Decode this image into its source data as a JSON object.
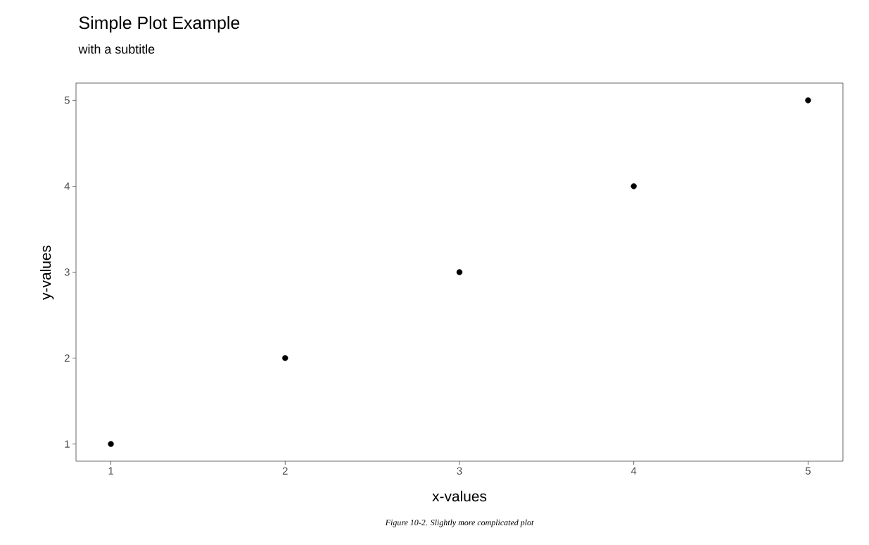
{
  "chart_data": {
    "type": "scatter",
    "title": "Simple Plot Example",
    "subtitle": "with a subtitle",
    "xlabel": "x-values",
    "ylabel": "y-values",
    "annotations": [
      "Figure 10-2. Slightly more complicated plot"
    ],
    "x": [
      1,
      2,
      3,
      4,
      5
    ],
    "values": [
      1,
      2,
      3,
      4,
      5
    ],
    "color": "#000000",
    "marker": "circle",
    "xlim": [
      0.8,
      5.2
    ],
    "ylim": [
      0.8,
      5.2
    ],
    "xticks": [
      1,
      2,
      3,
      4,
      5
    ],
    "yticks": [
      1,
      2,
      3,
      4,
      5
    ]
  }
}
